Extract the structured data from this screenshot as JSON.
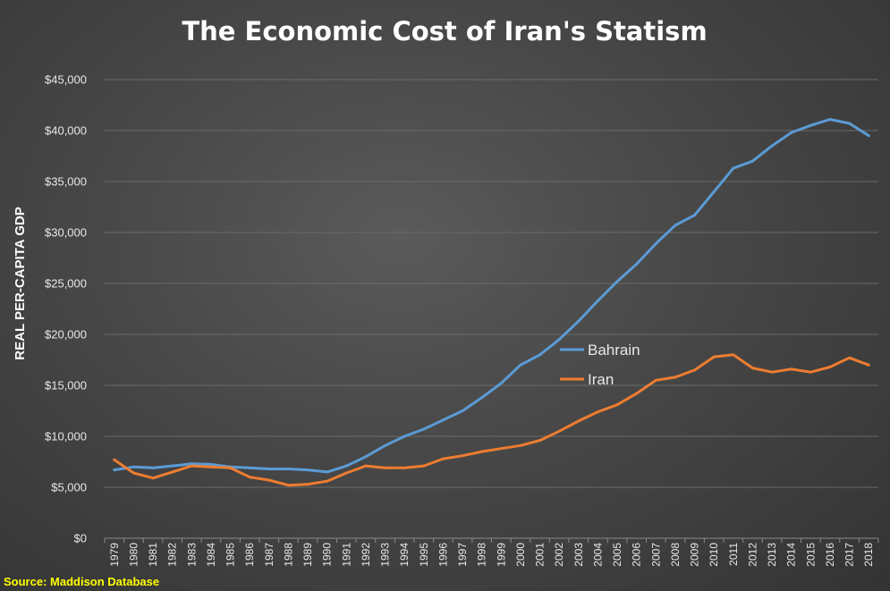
{
  "source": "Source: Maddison Database",
  "source_color": "#ffff00",
  "chart_data": {
    "type": "line",
    "title": "The Economic Cost of Iran's Statism",
    "xlabel": "",
    "ylabel": "REAL PER-CAPITA GDP",
    "ylim": [
      0,
      45000
    ],
    "yticks": [
      "$0",
      "$5,000",
      "$10,000",
      "$15,000",
      "$20,000",
      "$25,000",
      "$30,000",
      "$35,000",
      "$40,000",
      "$45,000"
    ],
    "grid": true,
    "legend_placement": "inline-right-center",
    "categories": [
      "1979",
      "1980",
      "1981",
      "1982",
      "1983",
      "1984",
      "1985",
      "1986",
      "1987",
      "1988",
      "1989",
      "1990",
      "1991",
      "1992",
      "1993",
      "1994",
      "1995",
      "1996",
      "1997",
      "1998",
      "1999",
      "2000",
      "2001",
      "2002",
      "2003",
      "2004",
      "2005",
      "2006",
      "2007",
      "2008",
      "2009",
      "2010",
      "2011",
      "2012",
      "2013",
      "2014",
      "2015",
      "2016",
      "2017",
      "2018"
    ],
    "series": [
      {
        "name": "Bahrain",
        "color": "#5b9bd5",
        "values": [
          6700,
          7000,
          6900,
          7100,
          7300,
          7250,
          7000,
          6900,
          6800,
          6800,
          6700,
          6500,
          7100,
          8000,
          9100,
          10000,
          10700,
          11600,
          12500,
          13800,
          15200,
          17000,
          18000,
          19500,
          21300,
          23300,
          25200,
          26900,
          28900,
          30700,
          31700,
          34000,
          36300,
          37000,
          38500,
          39800,
          40500,
          41100,
          40700,
          39500
        ]
      },
      {
        "name": "Iran",
        "color": "#ed7d31",
        "values": [
          7700,
          6400,
          5900,
          6500,
          7100,
          7000,
          6900,
          6000,
          5700,
          5200,
          5300,
          5600,
          6400,
          7100,
          6900,
          6900,
          7100,
          7800,
          8100,
          8500,
          8800,
          9100,
          9600,
          10500,
          11500,
          12400,
          13100,
          14200,
          15500,
          15800,
          16500,
          17800,
          18000,
          16700,
          16300,
          16600,
          16300,
          16800,
          17700,
          17000
        ]
      }
    ]
  }
}
